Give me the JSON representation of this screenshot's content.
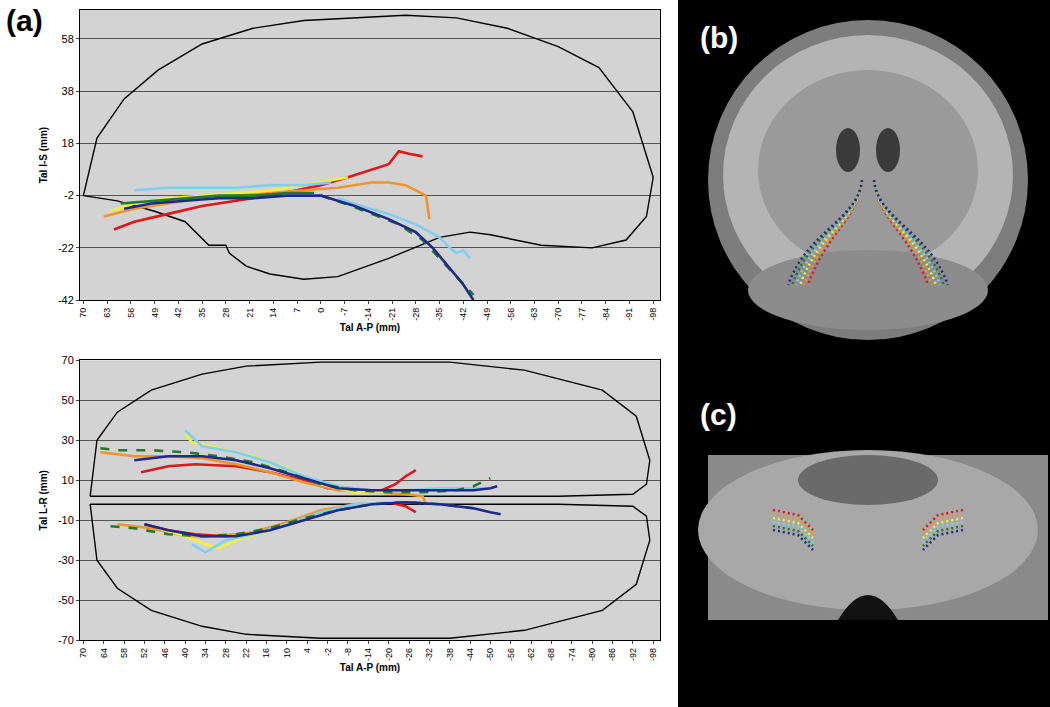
{
  "chart_data": [
    {
      "type": "line",
      "xlabel": "Tal A-P (mm)",
      "ylabel": "Tal I-S (mm)",
      "xlim": [
        71,
        -100
      ],
      "ylim": [
        -42,
        69
      ],
      "xticks": [
        70,
        63,
        56,
        49,
        42,
        35,
        28,
        21,
        14,
        7,
        0,
        -7,
        -14,
        -21,
        -28,
        -35,
        -42,
        -49,
        -56,
        -63,
        -70,
        -77,
        -84,
        -91,
        -98
      ],
      "yticks": [
        -42,
        -22,
        -2,
        18,
        38,
        58
      ],
      "grid": true,
      "series": [
        {
          "color": "#000000",
          "line_style": "solid",
          "x": [
            70,
            66,
            58,
            48,
            35,
            20,
            5,
            -10,
            -25,
            -40,
            -55,
            -70,
            -82,
            -92,
            -98,
            -96,
            -90,
            -80,
            -65,
            -50,
            -44,
            -35,
            -20,
            -5,
            5,
            15,
            22,
            27,
            28,
            33,
            40,
            49,
            60,
            70
          ],
          "values": [
            -2,
            20,
            35,
            46,
            56,
            62,
            65,
            66,
            67,
            66,
            62,
            55,
            47,
            30,
            5,
            -10,
            -19,
            -22,
            -21,
            -17,
            -16,
            -18,
            -26,
            -33,
            -34,
            -32,
            -29,
            -24,
            -21,
            -21,
            -12,
            -8,
            -4,
            -2
          ]
        },
        {
          "color": "#e3161b",
          "line_style": "solid",
          "x": [
            61,
            55,
            45,
            35,
            25,
            15,
            7,
            0,
            -8,
            -15,
            -20,
            -23,
            -26,
            -30
          ],
          "values": [
            -15,
            -12,
            -9,
            -6,
            -4,
            -2,
            0,
            2,
            5,
            8,
            10,
            15,
            14,
            13
          ]
        },
        {
          "color": "#f0952a",
          "line_style": "solid",
          "x": [
            64,
            55,
            45,
            35,
            25,
            15,
            5,
            -5,
            -15,
            -20,
            -25,
            -28,
            -31,
            -32
          ],
          "values": [
            -10,
            -7,
            -5,
            -3,
            -2,
            -1,
            0,
            1,
            3,
            3,
            2,
            0,
            -2,
            -11
          ]
        },
        {
          "color": "#f5f03a",
          "line_style": "solid",
          "x": [
            62,
            55,
            45,
            35,
            25,
            15,
            5,
            -3,
            -8
          ],
          "values": [
            -8,
            -5,
            -3,
            -2,
            -1,
            0,
            2,
            4,
            5
          ]
        },
        {
          "color": "#7fcff0",
          "line_style": "solid",
          "x": [
            55,
            45,
            35,
            25,
            15,
            5,
            -3
          ],
          "values": [
            0,
            1,
            1,
            1,
            2,
            2,
            3
          ]
        },
        {
          "color": "#7fcff0",
          "line_style": "solid",
          "x": [
            -5,
            -12,
            -20,
            -28,
            -35,
            -38,
            -40,
            -42,
            -44
          ],
          "values": [
            -3,
            -6,
            -9,
            -13,
            -18,
            -22,
            -24,
            -23,
            -26
          ]
        },
        {
          "color": "#1f7a2e",
          "line_style": "solid",
          "x": [
            59,
            50,
            40,
            30,
            20,
            10,
            2
          ],
          "values": [
            -5,
            -4,
            -3,
            -2,
            -2,
            -1,
            -1
          ]
        },
        {
          "color": "#1f7a2e",
          "line_style": "dashed",
          "x": [
            0,
            -7,
            -15,
            -23,
            -30,
            -35,
            -40,
            -45
          ],
          "values": [
            -2,
            -5,
            -9,
            -13,
            -19,
            -26,
            -33,
            -40
          ]
        },
        {
          "color": "#1c2a8c",
          "line_style": "solid",
          "x": [
            58,
            50,
            40,
            30,
            20,
            10,
            0,
            -10,
            -20,
            -28,
            -33,
            -38,
            -42,
            -45
          ],
          "values": [
            -7,
            -5,
            -4,
            -3,
            -3,
            -2,
            -2,
            -6,
            -11,
            -16,
            -22,
            -30,
            -36,
            -42
          ]
        }
      ]
    },
    {
      "type": "line",
      "xlabel": "Tal A-P (mm)",
      "ylabel": "Tal L-R (mm)",
      "xlim": [
        71,
        -100
      ],
      "ylim": [
        -70,
        70
      ],
      "xticks": [
        70,
        64,
        58,
        52,
        46,
        40,
        34,
        28,
        22,
        16,
        10,
        4,
        -2,
        -8,
        -14,
        -20,
        -26,
        -32,
        -38,
        -44,
        -50,
        -56,
        -62,
        -68,
        -74,
        -80,
        -86,
        -92,
        -98
      ],
      "yticks": [
        -70,
        -50,
        -30,
        -10,
        10,
        30,
        50,
        70
      ],
      "grid": true,
      "series": [
        {
          "color": "#000000",
          "line_style": "solid",
          "x": [
            68,
            66,
            60,
            50,
            35,
            22,
            0,
            -20,
            -38,
            -60,
            -83,
            -93,
            -97,
            -96,
            -92,
            -70,
            -40,
            -10,
            20,
            50,
            62,
            68,
            null,
            68,
            66,
            60,
            50,
            35,
            22,
            0,
            -20,
            -38,
            -60,
            -83,
            -93,
            -97,
            -96,
            -92,
            -70,
            -40,
            -10,
            20,
            50,
            62,
            68
          ],
          "values": [
            2,
            30,
            44,
            55,
            63,
            67,
            69,
            69,
            69,
            65,
            55,
            42,
            20,
            8,
            3,
            2,
            2,
            2,
            2,
            2,
            2,
            2,
            null,
            -2,
            -30,
            -44,
            -55,
            -63,
            -67,
            -69,
            -69,
            -69,
            -65,
            -55,
            -42,
            -20,
            -8,
            -3,
            -2,
            -2,
            -2,
            -2,
            -2,
            -2,
            -2
          ]
        },
        {
          "color": "#e3161b",
          "line_style": "solid",
          "x": [
            53,
            45,
            37,
            25,
            15,
            5,
            -2,
            -10,
            -18,
            -22,
            -25,
            -28,
            null,
            52,
            45,
            37,
            28,
            18,
            8,
            -2,
            -12,
            -20,
            -25,
            -28
          ],
          "values": [
            14,
            17,
            18,
            17,
            14,
            10,
            6,
            5,
            5,
            8,
            12,
            15,
            null,
            -12,
            -15,
            -17,
            -18,
            -16,
            -11,
            -5,
            -2,
            -1,
            -3,
            -6
          ]
        },
        {
          "color": "#f0952a",
          "line_style": "solid",
          "x": [
            65,
            55,
            45,
            35,
            25,
            15,
            5,
            -5,
            -15,
            -25,
            -30,
            -31,
            null,
            60,
            50,
            40,
            30,
            20,
            10,
            0,
            -10,
            -20,
            -28
          ],
          "values": [
            24,
            22,
            22,
            21,
            18,
            14,
            9,
            5,
            4,
            3,
            2,
            -2,
            null,
            -12,
            -14,
            -18,
            -18,
            -16,
            -11,
            -5,
            -2,
            -1,
            -1
          ]
        },
        {
          "color": "#f5f03a",
          "line_style": "solid",
          "x": [
            40,
            38,
            30,
            20,
            10,
            0,
            -10,
            -20,
            null,
            48,
            40,
            34,
            30,
            25,
            15,
            5,
            -5,
            -15,
            -22
          ],
          "values": [
            33,
            29,
            26,
            22,
            16,
            8,
            4,
            4,
            null,
            -14,
            -18,
            -22,
            -24,
            -20,
            -15,
            -9,
            -4,
            -1,
            -1
          ]
        },
        {
          "color": "#7fcff0",
          "line_style": "solid",
          "x": [
            40,
            35,
            25,
            15,
            5,
            -5,
            -15,
            -25,
            -35,
            -45,
            -48,
            null,
            38,
            34,
            28,
            20,
            10,
            0,
            -10,
            -20
          ],
          "values": [
            35,
            27,
            24,
            19,
            12,
            7,
            5,
            5,
            6,
            6,
            6,
            null,
            -22,
            -26,
            -20,
            -17,
            -12,
            -6,
            -2,
            -1
          ]
        },
        {
          "color": "#1f7a2e",
          "line_style": "dashed",
          "x": [
            65,
            60,
            50,
            40,
            30,
            20,
            10,
            0,
            -10,
            -20,
            -30,
            -40,
            -45,
            -50,
            null,
            62,
            55,
            45,
            35,
            25,
            15,
            5,
            -5,
            -15,
            -25,
            -35,
            -45
          ],
          "values": [
            26,
            25,
            25,
            24,
            22,
            19,
            14,
            8,
            5,
            4,
            4,
            5,
            7,
            11,
            null,
            -13,
            -14,
            -17,
            -18,
            -17,
            -14,
            -9,
            -5,
            -2,
            -1,
            -2,
            -4
          ]
        },
        {
          "color": "#1c2a8c",
          "line_style": "solid",
          "x": [
            55,
            45,
            35,
            25,
            15,
            5,
            -5,
            -15,
            -25,
            -35,
            -45,
            -50,
            -52,
            null,
            52,
            45,
            35,
            25,
            15,
            5,
            -5,
            -15,
            -25,
            -35,
            -45,
            -50,
            -53
          ],
          "values": [
            20,
            22,
            22,
            20,
            16,
            11,
            6,
            5,
            5,
            5,
            5,
            6,
            7,
            null,
            -12,
            -15,
            -18,
            -18,
            -15,
            -10,
            -5,
            -2,
            -1,
            -2,
            -4,
            -6,
            -7
          ]
        }
      ]
    }
  ],
  "labels": {
    "a": "(a)",
    "b": "(b)",
    "c": "(c)"
  }
}
